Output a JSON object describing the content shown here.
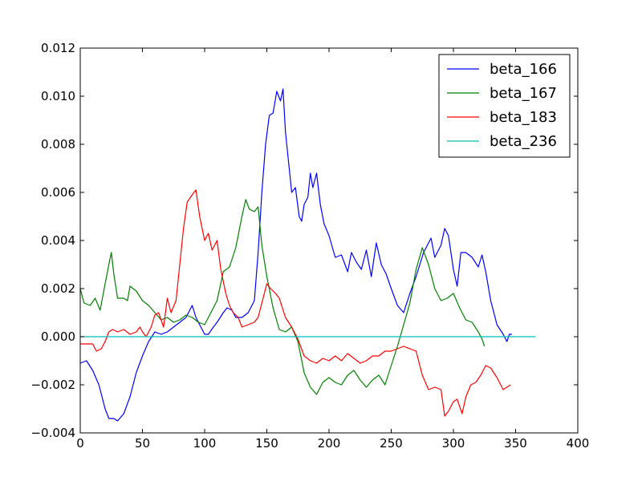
{
  "chart_data": {
    "type": "line",
    "title": "",
    "xlabel": "",
    "ylabel": "",
    "xlim": [
      0,
      400
    ],
    "ylim": [
      -0.004,
      0.012
    ],
    "xticks": [
      0,
      50,
      100,
      150,
      200,
      250,
      300,
      350,
      400
    ],
    "xtick_labels": [
      "0",
      "50",
      "100",
      "150",
      "200",
      "250",
      "300",
      "350",
      "400"
    ],
    "yticks": [
      -0.004,
      -0.002,
      0.0,
      0.002,
      0.004,
      0.006,
      0.008,
      0.01,
      0.012
    ],
    "ytick_labels": [
      "−0.004",
      "−0.002",
      "0.000",
      "0.002",
      "0.004",
      "0.006",
      "0.008",
      "0.010",
      "0.012"
    ],
    "grid": false,
    "legend_position": "top-right",
    "series": [
      {
        "name": "beta_166",
        "color": "#0000ff",
        "points": [
          [
            0,
            -0.0011
          ],
          [
            5,
            -0.001
          ],
          [
            10,
            -0.0014
          ],
          [
            15,
            -0.002
          ],
          [
            20,
            -0.003
          ],
          [
            23,
            -0.0034
          ],
          [
            27,
            -0.0034
          ],
          [
            30,
            -0.0035
          ],
          [
            35,
            -0.0032
          ],
          [
            40,
            -0.0025
          ],
          [
            45,
            -0.0015
          ],
          [
            50,
            -0.0008
          ],
          [
            55,
            -0.0002
          ],
          [
            60,
            0.0002
          ],
          [
            65,
            0.0001
          ],
          [
            70,
            0.0002
          ],
          [
            75,
            0.0004
          ],
          [
            80,
            0.0006
          ],
          [
            85,
            0.0008
          ],
          [
            88,
            0.0011
          ],
          [
            90,
            0.0013
          ],
          [
            93,
            0.0008
          ],
          [
            97,
            0.0004
          ],
          [
            100,
            0.0001
          ],
          [
            103,
            0.0001
          ],
          [
            107,
            0.0004
          ],
          [
            110,
            0.0006
          ],
          [
            115,
            0.001
          ],
          [
            118,
            0.0012
          ],
          [
            122,
            0.0011
          ],
          [
            125,
            0.0008
          ],
          [
            130,
            0.0008
          ],
          [
            135,
            0.001
          ],
          [
            140,
            0.0015
          ],
          [
            143,
            0.0035
          ],
          [
            146,
            0.006
          ],
          [
            149,
            0.008
          ],
          [
            152,
            0.0092
          ],
          [
            155,
            0.0093
          ],
          [
            158,
            0.0102
          ],
          [
            161,
            0.0098
          ],
          [
            163,
            0.0103
          ],
          [
            165,
            0.0085
          ],
          [
            168,
            0.007
          ],
          [
            170,
            0.006
          ],
          [
            173,
            0.0062
          ],
          [
            176,
            0.005
          ],
          [
            178,
            0.0048
          ],
          [
            180,
            0.0055
          ],
          [
            183,
            0.0058
          ],
          [
            185,
            0.0068
          ],
          [
            187,
            0.0062
          ],
          [
            190,
            0.0068
          ],
          [
            193,
            0.0055
          ],
          [
            196,
            0.0047
          ],
          [
            200,
            0.0042
          ],
          [
            205,
            0.0033
          ],
          [
            210,
            0.0034
          ],
          [
            215,
            0.0027
          ],
          [
            218,
            0.0035
          ],
          [
            222,
            0.0031
          ],
          [
            226,
            0.0028
          ],
          [
            230,
            0.0036
          ],
          [
            234,
            0.0025
          ],
          [
            238,
            0.0039
          ],
          [
            242,
            0.003
          ],
          [
            246,
            0.0026
          ],
          [
            250,
            0.002
          ],
          [
            255,
            0.0013
          ],
          [
            260,
            0.001
          ],
          [
            265,
            0.0018
          ],
          [
            270,
            0.0025
          ],
          [
            273,
            0.003
          ],
          [
            276,
            0.0035
          ],
          [
            279,
            0.0038
          ],
          [
            282,
            0.0041
          ],
          [
            285,
            0.0033
          ],
          [
            290,
            0.0038
          ],
          [
            293,
            0.0045
          ],
          [
            296,
            0.0042
          ],
          [
            300,
            0.0028
          ],
          [
            303,
            0.0021
          ],
          [
            306,
            0.0035
          ],
          [
            310,
            0.0035
          ],
          [
            315,
            0.0033
          ],
          [
            320,
            0.0029
          ],
          [
            323,
            0.0034
          ],
          [
            326,
            0.0027
          ],
          [
            330,
            0.0015
          ],
          [
            335,
            0.0005
          ],
          [
            340,
            0.0001
          ],
          [
            343,
            -0.0002
          ],
          [
            345,
            0.0001
          ],
          [
            347,
            0.0001
          ]
        ]
      },
      {
        "name": "beta_167",
        "color": "#008000",
        "points": [
          [
            0,
            0.002
          ],
          [
            3,
            0.0014
          ],
          [
            8,
            0.0013
          ],
          [
            12,
            0.0016
          ],
          [
            16,
            0.0011
          ],
          [
            20,
            0.0022
          ],
          [
            23,
            0.003
          ],
          [
            25,
            0.0035
          ],
          [
            27,
            0.0026
          ],
          [
            30,
            0.0016
          ],
          [
            35,
            0.0016
          ],
          [
            38,
            0.0015
          ],
          [
            40,
            0.0021
          ],
          [
            45,
            0.0019
          ],
          [
            50,
            0.0015
          ],
          [
            55,
            0.0013
          ],
          [
            60,
            0.001
          ],
          [
            65,
            0.0007
          ],
          [
            70,
            0.0008
          ],
          [
            75,
            0.0006
          ],
          [
            80,
            0.0007
          ],
          [
            85,
            0.0009
          ],
          [
            90,
            0.0008
          ],
          [
            95,
            0.0006
          ],
          [
            100,
            0.0005
          ],
          [
            105,
            0.001
          ],
          [
            110,
            0.0015
          ],
          [
            115,
            0.0027
          ],
          [
            120,
            0.0029
          ],
          [
            125,
            0.0037
          ],
          [
            130,
            0.005
          ],
          [
            133,
            0.0057
          ],
          [
            136,
            0.0053
          ],
          [
            140,
            0.0052
          ],
          [
            143,
            0.0054
          ],
          [
            146,
            0.0038
          ],
          [
            150,
            0.0025
          ],
          [
            155,
            0.0012
          ],
          [
            160,
            0.0003
          ],
          [
            165,
            0.0002
          ],
          [
            170,
            0.0004
          ],
          [
            175,
            -0.0002
          ],
          [
            180,
            -0.0015
          ],
          [
            185,
            -0.0021
          ],
          [
            190,
            -0.0024
          ],
          [
            195,
            -0.0019
          ],
          [
            200,
            -0.0017
          ],
          [
            205,
            -0.0019
          ],
          [
            210,
            -0.002
          ],
          [
            215,
            -0.0016
          ],
          [
            220,
            -0.0014
          ],
          [
            225,
            -0.0018
          ],
          [
            230,
            -0.0021
          ],
          [
            235,
            -0.0018
          ],
          [
            240,
            -0.0016
          ],
          [
            245,
            -0.002
          ],
          [
            250,
            -0.0012
          ],
          [
            255,
            -0.0004
          ],
          [
            260,
            0.0005
          ],
          [
            265,
            0.0014
          ],
          [
            270,
            0.0028
          ],
          [
            275,
            0.0037
          ],
          [
            280,
            0.003
          ],
          [
            285,
            0.002
          ],
          [
            290,
            0.0015
          ],
          [
            295,
            0.0016
          ],
          [
            300,
            0.0018
          ],
          [
            305,
            0.0012
          ],
          [
            310,
            0.0007
          ],
          [
            315,
            0.0006
          ],
          [
            320,
            0.0002
          ],
          [
            323,
            -0.0001
          ],
          [
            325,
            -0.0004
          ]
        ]
      },
      {
        "name": "beta_183",
        "color": "#ff0000",
        "points": [
          [
            0,
            -0.0003
          ],
          [
            5,
            -0.0003
          ],
          [
            10,
            -0.0003
          ],
          [
            13,
            -0.0006
          ],
          [
            17,
            -0.0005
          ],
          [
            20,
            -0.0002
          ],
          [
            23,
            0.0002
          ],
          [
            26,
            0.0003
          ],
          [
            30,
            0.0002
          ],
          [
            35,
            0.0003
          ],
          [
            40,
            0.0001
          ],
          [
            45,
            0.0002
          ],
          [
            48,
            0.0004
          ],
          [
            50,
            0.0002
          ],
          [
            53,
            0.0
          ],
          [
            57,
            0.0004
          ],
          [
            60,
            0.0009
          ],
          [
            63,
            0.001
          ],
          [
            67,
            0.0004
          ],
          [
            70,
            0.0016
          ],
          [
            73,
            0.001
          ],
          [
            77,
            0.0015
          ],
          [
            80,
            0.003
          ],
          [
            83,
            0.0045
          ],
          [
            86,
            0.0056
          ],
          [
            90,
            0.0059
          ],
          [
            93,
            0.0061
          ],
          [
            96,
            0.005
          ],
          [
            100,
            0.004
          ],
          [
            103,
            0.0043
          ],
          [
            106,
            0.0036
          ],
          [
            110,
            0.004
          ],
          [
            113,
            0.0028
          ],
          [
            117,
            0.0018
          ],
          [
            120,
            0.0013
          ],
          [
            123,
            0.001
          ],
          [
            127,
            0.0008
          ],
          [
            130,
            0.0004
          ],
          [
            135,
            0.0005
          ],
          [
            140,
            0.0006
          ],
          [
            143,
            0.0008
          ],
          [
            146,
            0.0014
          ],
          [
            150,
            0.0022
          ],
          [
            153,
            0.002
          ],
          [
            157,
            0.0018
          ],
          [
            160,
            0.0016
          ],
          [
            165,
            0.0008
          ],
          [
            170,
            0.0004
          ],
          [
            175,
            -0.0001
          ],
          [
            180,
            -0.0008
          ],
          [
            185,
            -0.001
          ],
          [
            190,
            -0.0011
          ],
          [
            195,
            -0.0009
          ],
          [
            200,
            -0.001
          ],
          [
            205,
            -0.0008
          ],
          [
            210,
            -0.001
          ],
          [
            215,
            -0.0007
          ],
          [
            220,
            -0.0009
          ],
          [
            225,
            -0.0011
          ],
          [
            230,
            -0.001
          ],
          [
            235,
            -0.0008
          ],
          [
            240,
            -0.0008
          ],
          [
            245,
            -0.0006
          ],
          [
            250,
            -0.0006
          ],
          [
            255,
            -0.0005
          ],
          [
            260,
            -0.0004
          ],
          [
            265,
            -0.0005
          ],
          [
            270,
            -0.0006
          ],
          [
            275,
            -0.0016
          ],
          [
            280,
            -0.0022
          ],
          [
            285,
            -0.0021
          ],
          [
            290,
            -0.0022
          ],
          [
            293,
            -0.0033
          ],
          [
            296,
            -0.0031
          ],
          [
            300,
            -0.0027
          ],
          [
            303,
            -0.0026
          ],
          [
            307,
            -0.0032
          ],
          [
            310,
            -0.0025
          ],
          [
            314,
            -0.002
          ],
          [
            318,
            -0.0019
          ],
          [
            322,
            -0.0016
          ],
          [
            326,
            -0.0012
          ],
          [
            330,
            -0.0013
          ],
          [
            335,
            -0.0017
          ],
          [
            340,
            -0.0022
          ],
          [
            343,
            -0.0021
          ],
          [
            346,
            -0.002
          ]
        ]
      },
      {
        "name": "beta_236",
        "color": "#00bfbf",
        "points": [
          [
            0,
            0.0
          ],
          [
            366,
            0.0
          ]
        ]
      }
    ]
  }
}
